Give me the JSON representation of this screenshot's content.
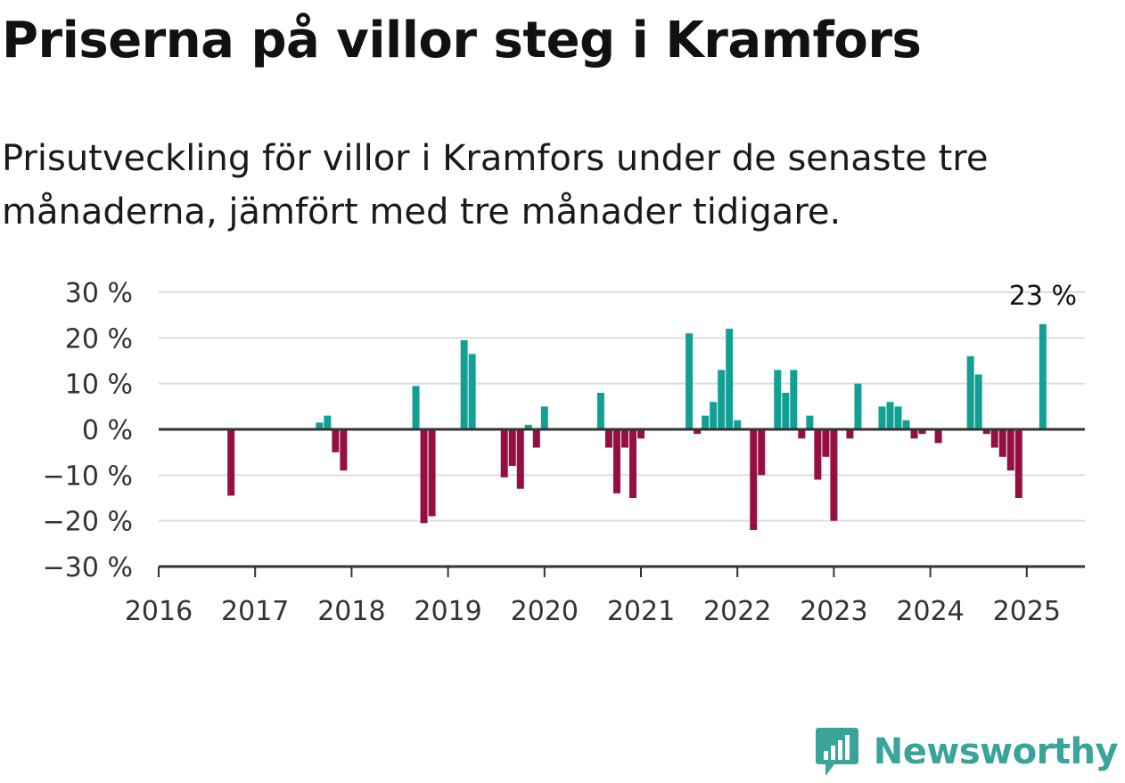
{
  "header": {
    "title": "Priserna på villor steg i Kramfors",
    "subtitle": "Prisutveckling för villor i Kramfors under de senaste tre månaderna, jämfört med tre månader tidigare."
  },
  "brand": {
    "name": "Newsworthy",
    "icon": "newsworthy-logo-icon"
  },
  "colors": {
    "positive": "#13a094",
    "negative": "#960f43",
    "grid": "#dddddd",
    "axis": "#333333"
  },
  "chart_data": {
    "type": "bar",
    "title": "Priserna på villor steg i Kramfors",
    "subtitle": "Prisutveckling för villor i Kramfors under de senaste tre månaderna, jämfört med tre månader tidigare.",
    "ylim": [
      -30,
      30
    ],
    "y_ticks": [
      30,
      20,
      10,
      0,
      -10,
      -20,
      -30
    ],
    "y_tick_labels": [
      "30 %",
      "20 %",
      "10 %",
      "0 %",
      "−10 %",
      "−20 %",
      "−30 %"
    ],
    "x_ticks": [
      2016,
      2017,
      2018,
      2019,
      2020,
      2021,
      2022,
      2023,
      2024,
      2025
    ],
    "x_tick_labels": [
      "2016",
      "2017",
      "2018",
      "2019",
      "2020",
      "2021",
      "2022",
      "2023",
      "2024",
      "2025"
    ],
    "grid": true,
    "legend": "none",
    "annotation": {
      "date": "2025-03",
      "value": 23,
      "label": "23 %"
    },
    "points": [
      {
        "date": "2016-10",
        "value": -14.5
      },
      {
        "date": "2017-09",
        "value": 1.5
      },
      {
        "date": "2017-10",
        "value": 3
      },
      {
        "date": "2017-11",
        "value": -5
      },
      {
        "date": "2017-12",
        "value": -9
      },
      {
        "date": "2018-09",
        "value": 9.5
      },
      {
        "date": "2018-10",
        "value": -20.5
      },
      {
        "date": "2018-11",
        "value": -19
      },
      {
        "date": "2019-03",
        "value": 19.5
      },
      {
        "date": "2019-04",
        "value": 16.5
      },
      {
        "date": "2019-08",
        "value": -10.5
      },
      {
        "date": "2019-09",
        "value": -8
      },
      {
        "date": "2019-10",
        "value": -13
      },
      {
        "date": "2019-11",
        "value": 1
      },
      {
        "date": "2019-12",
        "value": -4
      },
      {
        "date": "2020-01",
        "value": 5
      },
      {
        "date": "2020-08",
        "value": 8
      },
      {
        "date": "2020-09",
        "value": -4
      },
      {
        "date": "2020-10",
        "value": -14
      },
      {
        "date": "2020-11",
        "value": -4
      },
      {
        "date": "2020-12",
        "value": -15
      },
      {
        "date": "2021-01",
        "value": -2
      },
      {
        "date": "2021-07",
        "value": 21
      },
      {
        "date": "2021-08",
        "value": -1
      },
      {
        "date": "2021-09",
        "value": 3
      },
      {
        "date": "2021-10",
        "value": 6
      },
      {
        "date": "2021-11",
        "value": 13
      },
      {
        "date": "2021-12",
        "value": 22
      },
      {
        "date": "2022-01",
        "value": 2
      },
      {
        "date": "2022-03",
        "value": -22
      },
      {
        "date": "2022-04",
        "value": -10
      },
      {
        "date": "2022-06",
        "value": 13
      },
      {
        "date": "2022-07",
        "value": 8
      },
      {
        "date": "2022-08",
        "value": 13
      },
      {
        "date": "2022-09",
        "value": -2
      },
      {
        "date": "2022-10",
        "value": 3
      },
      {
        "date": "2022-11",
        "value": -11
      },
      {
        "date": "2022-12",
        "value": -6
      },
      {
        "date": "2023-01",
        "value": -20
      },
      {
        "date": "2023-03",
        "value": -2
      },
      {
        "date": "2023-04",
        "value": 10
      },
      {
        "date": "2023-07",
        "value": 5
      },
      {
        "date": "2023-08",
        "value": 6
      },
      {
        "date": "2023-09",
        "value": 5
      },
      {
        "date": "2023-10",
        "value": 2
      },
      {
        "date": "2023-11",
        "value": -2
      },
      {
        "date": "2023-12",
        "value": -1
      },
      {
        "date": "2024-02",
        "value": -3
      },
      {
        "date": "2024-06",
        "value": 16
      },
      {
        "date": "2024-07",
        "value": 12
      },
      {
        "date": "2024-08",
        "value": -1
      },
      {
        "date": "2024-09",
        "value": -4
      },
      {
        "date": "2024-10",
        "value": -6
      },
      {
        "date": "2024-11",
        "value": -9
      },
      {
        "date": "2024-12",
        "value": -15
      },
      {
        "date": "2025-03",
        "value": 23
      }
    ]
  }
}
